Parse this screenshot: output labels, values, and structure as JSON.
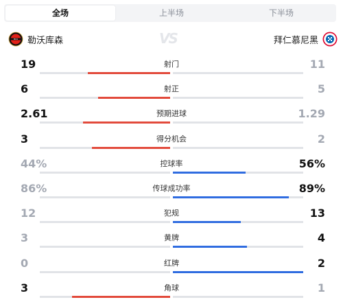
{
  "tabs": [
    {
      "label": "全场",
      "active": true
    },
    {
      "label": "上半场",
      "active": false
    },
    {
      "label": "下半场",
      "active": false
    }
  ],
  "teams": {
    "home": {
      "name": "勒沃库森",
      "logo": "leverkusen-crest-icon"
    },
    "away": {
      "name": "拜仁慕尼黑",
      "logo": "bayern-crest-icon"
    },
    "vs": "VS"
  },
  "colors": {
    "home_highlight": "#e24a3b",
    "away_highlight": "#2f6ce0",
    "bar_base": "#e1e3e7",
    "dim_text": "#a3a8b2"
  },
  "stats": [
    {
      "label": "射门",
      "home": "19",
      "away": "11",
      "home_share": 0.63,
      "away_share": 0.37,
      "leader": "home"
    },
    {
      "label": "射正",
      "home": "6",
      "away": "5",
      "home_share": 0.55,
      "away_share": 0.45,
      "leader": "home"
    },
    {
      "label": "预期进球",
      "home": "2.61",
      "away": "1.29",
      "home_share": 0.67,
      "away_share": 0.33,
      "leader": "home"
    },
    {
      "label": "得分机会",
      "home": "3",
      "away": "2",
      "home_share": 0.6,
      "away_share": 0.4,
      "leader": "home"
    },
    {
      "label": "控球率",
      "home": "44%",
      "away": "56%",
      "home_share": 0.44,
      "away_share": 0.56,
      "leader": "away"
    },
    {
      "label": "传球成功率",
      "home": "86%",
      "away": "89%",
      "home_share": 0.86,
      "away_share": 0.89,
      "leader": "away"
    },
    {
      "label": "犯规",
      "home": "12",
      "away": "13",
      "home_share": 0.48,
      "away_share": 0.52,
      "leader": "away"
    },
    {
      "label": "黄牌",
      "home": "3",
      "away": "4",
      "home_share": 0.43,
      "away_share": 0.57,
      "leader": "away"
    },
    {
      "label": "红牌",
      "home": "0",
      "away": "2",
      "home_share": 0.0,
      "away_share": 1.0,
      "leader": "away"
    },
    {
      "label": "角球",
      "home": "3",
      "away": "1",
      "home_share": 0.75,
      "away_share": 0.25,
      "leader": "home"
    }
  ]
}
